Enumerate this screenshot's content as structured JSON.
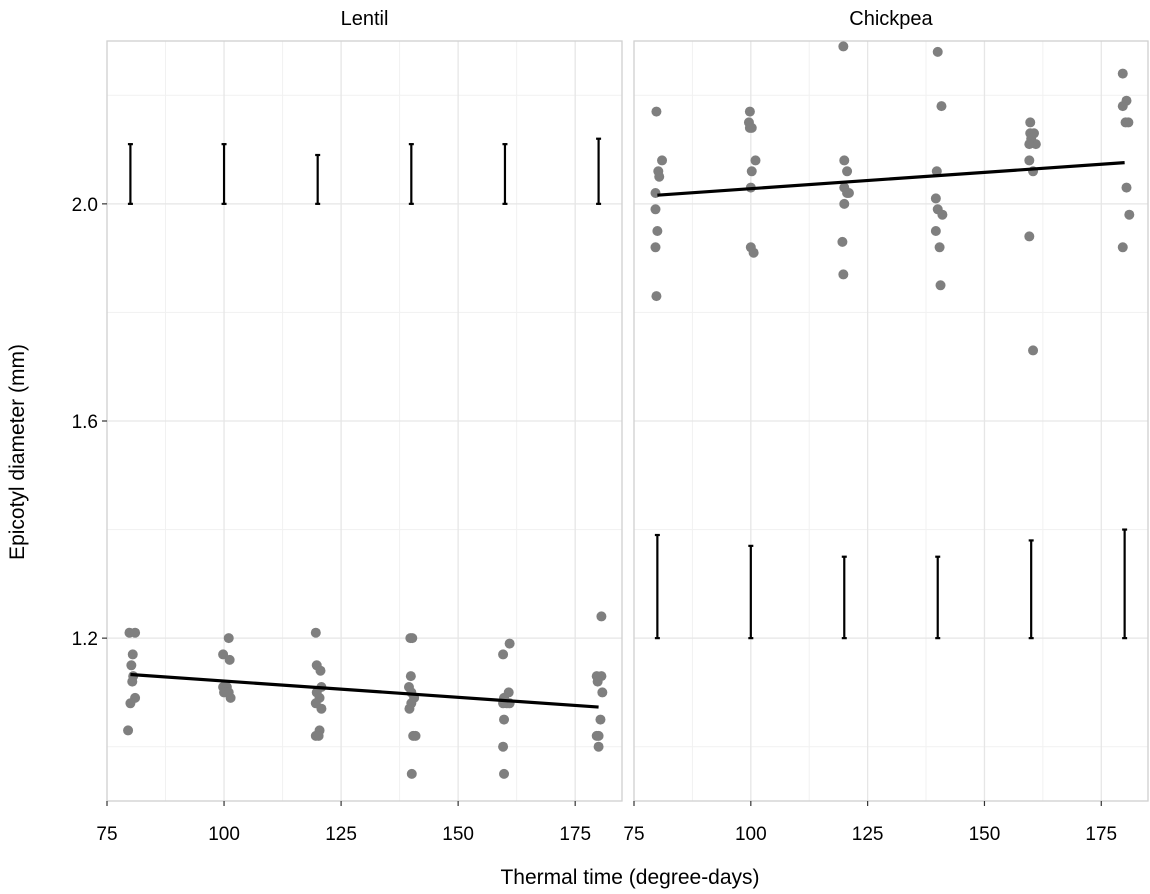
{
  "chart_data": {
    "type": "scatter",
    "xlabel": "Thermal time (degree-days)",
    "ylabel": "Epicotyl diameter (mm)",
    "xlim": [
      75,
      185
    ],
    "ylim": [
      0.9,
      2.3
    ],
    "x_ticks": [
      75,
      100,
      125,
      150,
      175
    ],
    "x_tick_labels": [
      "75",
      "100",
      "125",
      "150",
      "175"
    ],
    "y_ticks": [
      1.2,
      1.6,
      2.0
    ],
    "y_tick_labels": [
      "1.2",
      "1.6",
      "2.0"
    ],
    "grid": true,
    "colors": {
      "points": "#7f7f7f",
      "line": "#000000",
      "errorbar": "#000000",
      "grid": "#e6e6e6",
      "frame": "#d0d0d0"
    },
    "panels": [
      {
        "title": "Lentil",
        "points": [
          [
            79.8,
            1.21
          ],
          [
            81.0,
            1.21
          ],
          [
            80.5,
            1.17
          ],
          [
            80.2,
            1.15
          ],
          [
            80.6,
            1.13
          ],
          [
            80.4,
            1.12
          ],
          [
            81.0,
            1.09
          ],
          [
            80.0,
            1.08
          ],
          [
            79.5,
            1.03
          ],
          [
            99.8,
            1.17
          ],
          [
            101.0,
            1.2
          ],
          [
            101.2,
            1.16
          ],
          [
            99.8,
            1.11
          ],
          [
            100.6,
            1.11
          ],
          [
            100.0,
            1.1
          ],
          [
            101.0,
            1.1
          ],
          [
            101.4,
            1.09
          ],
          [
            119.6,
            1.21
          ],
          [
            119.8,
            1.15
          ],
          [
            120.6,
            1.14
          ],
          [
            120.8,
            1.11
          ],
          [
            119.8,
            1.1
          ],
          [
            120.4,
            1.09
          ],
          [
            119.6,
            1.08
          ],
          [
            120.8,
            1.07
          ],
          [
            120.4,
            1.03
          ],
          [
            119.6,
            1.02
          ],
          [
            120.2,
            1.02
          ],
          [
            139.8,
            1.2
          ],
          [
            140.2,
            1.2
          ],
          [
            139.9,
            1.13
          ],
          [
            139.5,
            1.11
          ],
          [
            140.0,
            1.1
          ],
          [
            140.6,
            1.09
          ],
          [
            139.6,
            1.07
          ],
          [
            140.0,
            1.08
          ],
          [
            140.4,
            1.02
          ],
          [
            140.9,
            1.02
          ],
          [
            140.1,
            0.95
          ],
          [
            161.0,
            1.19
          ],
          [
            159.6,
            1.17
          ],
          [
            160.8,
            1.1
          ],
          [
            159.8,
            1.09
          ],
          [
            160.4,
            1.08
          ],
          [
            161.0,
            1.08
          ],
          [
            159.6,
            1.08
          ],
          [
            159.8,
            1.05
          ],
          [
            159.6,
            1.0
          ],
          [
            159.8,
            0.95
          ],
          [
            180.6,
            1.24
          ],
          [
            180.6,
            1.13
          ],
          [
            179.6,
            1.13
          ],
          [
            180.8,
            1.1
          ],
          [
            179.8,
            1.12
          ],
          [
            180.4,
            1.05
          ],
          [
            179.6,
            1.02
          ],
          [
            180.0,
            1.02
          ],
          [
            180.0,
            1.0
          ]
        ],
        "trend": {
          "x": [
            80,
            180
          ],
          "y": [
            1.133,
            1.073
          ]
        },
        "error_bars": [
          {
            "x": 80,
            "ymin": 2.0,
            "ymax": 2.11
          },
          {
            "x": 100,
            "ymin": 2.0,
            "ymax": 2.11
          },
          {
            "x": 120,
            "ymin": 2.0,
            "ymax": 2.09
          },
          {
            "x": 140,
            "ymin": 2.0,
            "ymax": 2.11
          },
          {
            "x": 160,
            "ymin": 2.0,
            "ymax": 2.11
          },
          {
            "x": 180,
            "ymin": 2.0,
            "ymax": 2.12
          }
        ]
      },
      {
        "title": "Chickpea",
        "points": [
          [
            79.8,
            2.17
          ],
          [
            81.0,
            2.08
          ],
          [
            80.2,
            2.06
          ],
          [
            80.4,
            2.05
          ],
          [
            79.6,
            2.02
          ],
          [
            79.6,
            1.99
          ],
          [
            80.0,
            1.95
          ],
          [
            79.6,
            1.92
          ],
          [
            79.8,
            1.83
          ],
          [
            99.8,
            2.17
          ],
          [
            99.6,
            2.15
          ],
          [
            100.2,
            2.14
          ],
          [
            99.8,
            2.14
          ],
          [
            101.0,
            2.08
          ],
          [
            100.2,
            2.06
          ],
          [
            100.0,
            2.03
          ],
          [
            100.0,
            1.92
          ],
          [
            100.6,
            1.91
          ],
          [
            119.8,
            2.29
          ],
          [
            120.0,
            2.08
          ],
          [
            120.6,
            2.06
          ],
          [
            120.0,
            2.03
          ],
          [
            121.0,
            2.02
          ],
          [
            120.6,
            2.02
          ],
          [
            120.0,
            2.0
          ],
          [
            119.6,
            1.93
          ],
          [
            119.8,
            1.87
          ],
          [
            140.0,
            2.28
          ],
          [
            140.8,
            2.18
          ],
          [
            139.8,
            2.06
          ],
          [
            139.6,
            2.01
          ],
          [
            140.0,
            1.99
          ],
          [
            141.0,
            1.98
          ],
          [
            139.6,
            1.95
          ],
          [
            140.4,
            1.92
          ],
          [
            140.6,
            1.85
          ],
          [
            159.8,
            2.15
          ],
          [
            159.8,
            2.13
          ],
          [
            160.6,
            2.13
          ],
          [
            160.0,
            2.12
          ],
          [
            161.0,
            2.11
          ],
          [
            159.6,
            2.11
          ],
          [
            159.6,
            2.08
          ],
          [
            160.4,
            2.06
          ],
          [
            159.6,
            1.94
          ],
          [
            160.4,
            1.73
          ],
          [
            179.6,
            2.24
          ],
          [
            180.4,
            2.19
          ],
          [
            179.6,
            2.18
          ],
          [
            180.8,
            2.15
          ],
          [
            180.2,
            2.15
          ],
          [
            180.4,
            2.03
          ],
          [
            181.0,
            1.98
          ],
          [
            179.6,
            1.92
          ]
        ],
        "trend": {
          "x": [
            80,
            180
          ],
          "y": [
            2.016,
            2.076
          ]
        },
        "error_bars": [
          {
            "x": 80,
            "ymin": 1.2,
            "ymax": 1.39
          },
          {
            "x": 100,
            "ymin": 1.2,
            "ymax": 1.37
          },
          {
            "x": 120,
            "ymin": 1.2,
            "ymax": 1.35
          },
          {
            "x": 140,
            "ymin": 1.2,
            "ymax": 1.35
          },
          {
            "x": 160,
            "ymin": 1.2,
            "ymax": 1.38
          },
          {
            "x": 180,
            "ymin": 1.2,
            "ymax": 1.4
          }
        ]
      }
    ]
  }
}
